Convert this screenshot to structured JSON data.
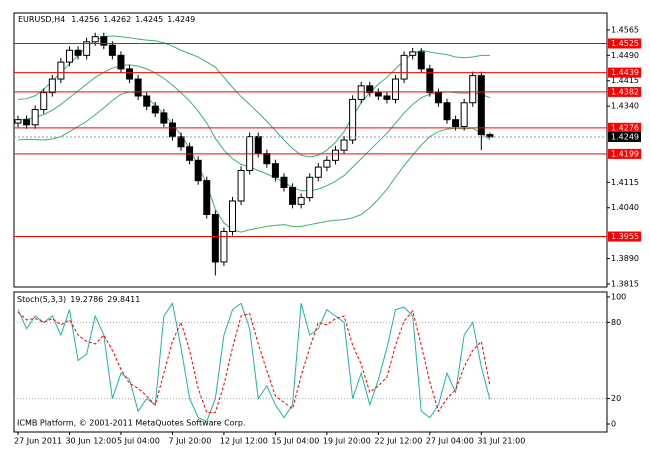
{
  "chart_data": [
    {
      "type": "candlestick",
      "symbol": "EURUSD,H4",
      "categories": [
        "27 Jun 2011",
        null,
        null,
        null,
        null,
        null,
        "30 Jun 12:00",
        null,
        null,
        null,
        null,
        null,
        "5 Jul 04:00",
        null,
        null,
        null,
        null,
        null,
        "7 Jul 20:00",
        null,
        null,
        null,
        null,
        null,
        "12 Jul 12:00",
        null,
        null,
        null,
        null,
        null,
        "15 Jul 04:00",
        null,
        null,
        null,
        null,
        null,
        "19 Jul 20:00",
        null,
        null,
        null,
        null,
        null,
        "22 Jul 12:00",
        null,
        null,
        null,
        null,
        null,
        "27 Jul 04:00",
        null,
        null,
        null,
        null,
        null,
        "31 Jul 21:00",
        null
      ],
      "open": [
        1.429,
        1.43,
        1.4285,
        1.433,
        1.438,
        1.442,
        1.447,
        1.4505,
        1.449,
        1.453,
        1.4545,
        1.452,
        1.449,
        1.445,
        1.442,
        1.437,
        1.434,
        1.432,
        1.429,
        1.425,
        1.422,
        1.418,
        1.412,
        1.402,
        1.388,
        1.397,
        1.406,
        1.415,
        1.425,
        1.42,
        1.417,
        1.413,
        1.41,
        1.405,
        1.407,
        1.413,
        1.416,
        1.418,
        1.421,
        1.424,
        1.436,
        1.44,
        1.438,
        1.437,
        1.436,
        1.442,
        1.449,
        1.45,
        1.445,
        1.438,
        1.435,
        1.43,
        1.428,
        1.435,
        1.443,
        1.4256
      ],
      "high": [
        1.4312,
        1.4312,
        1.4342,
        1.4392,
        1.4432,
        1.4482,
        1.4517,
        1.4517,
        1.4542,
        1.4557,
        1.4557,
        1.4532,
        1.4502,
        1.4462,
        1.4432,
        1.4382,
        1.4352,
        1.4332,
        1.4302,
        1.4262,
        1.4232,
        1.4192,
        1.4132,
        1.4032,
        1.3982,
        1.4072,
        1.4162,
        1.4262,
        1.4262,
        1.4212,
        1.4182,
        1.4142,
        1.4112,
        1.4082,
        1.4142,
        1.4172,
        1.4192,
        1.4222,
        1.4252,
        1.4372,
        1.4412,
        1.4412,
        1.4392,
        1.4382,
        1.4432,
        1.4502,
        1.4512,
        1.4512,
        1.4462,
        1.4392,
        1.4362,
        1.4312,
        1.4362,
        1.4442,
        1.4442,
        1.4262
      ],
      "low": [
        1.4278,
        1.4273,
        1.4273,
        1.4318,
        1.4368,
        1.4408,
        1.4458,
        1.4478,
        1.4478,
        1.4518,
        1.4508,
        1.4478,
        1.4438,
        1.4408,
        1.4358,
        1.4328,
        1.4308,
        1.4278,
        1.4238,
        1.4208,
        1.4168,
        1.4108,
        1.4008,
        1.384,
        1.3868,
        1.3958,
        1.4048,
        1.4138,
        1.4188,
        1.4158,
        1.4118,
        1.4088,
        1.4038,
        1.4038,
        1.4058,
        1.4118,
        1.4148,
        1.4168,
        1.4198,
        1.4228,
        1.4348,
        1.4368,
        1.4358,
        1.4348,
        1.4348,
        1.4408,
        1.4478,
        1.4438,
        1.4368,
        1.4338,
        1.4288,
        1.4268,
        1.4268,
        1.4338,
        1.421,
        1.4245
      ],
      "close": [
        1.43,
        1.4285,
        1.433,
        1.438,
        1.442,
        1.447,
        1.4505,
        1.449,
        1.453,
        1.4545,
        1.452,
        1.449,
        1.445,
        1.442,
        1.437,
        1.434,
        1.432,
        1.429,
        1.425,
        1.422,
        1.418,
        1.412,
        1.402,
        1.388,
        1.397,
        1.406,
        1.415,
        1.425,
        1.42,
        1.417,
        1.413,
        1.41,
        1.405,
        1.407,
        1.413,
        1.416,
        1.418,
        1.421,
        1.424,
        1.436,
        1.44,
        1.438,
        1.437,
        1.436,
        1.442,
        1.449,
        1.45,
        1.445,
        1.438,
        1.435,
        1.43,
        1.428,
        1.435,
        1.443,
        1.4256,
        1.4249
      ],
      "bollinger": {
        "color": "#3cb371",
        "upper": [
          1.436,
          1.4362,
          1.4371,
          1.439,
          1.4413,
          1.444,
          1.4465,
          1.449,
          1.4515,
          1.4535,
          1.4545,
          1.4547,
          1.4545,
          1.4542,
          1.4538,
          1.4535,
          1.4533,
          1.4527,
          1.4517,
          1.4505,
          1.4495,
          1.4485,
          1.447,
          1.4455,
          1.4425,
          1.4395,
          1.4368,
          1.4345,
          1.432,
          1.4295,
          1.4268,
          1.424,
          1.4215,
          1.4195,
          1.419,
          1.4195,
          1.421,
          1.4233,
          1.4265,
          1.431,
          1.435,
          1.438,
          1.4405,
          1.4425,
          1.445,
          1.4475,
          1.4495,
          1.4505,
          1.45,
          1.4495,
          1.4492,
          1.4485,
          1.4483,
          1.4485,
          1.449,
          1.449
        ],
        "middle": [
          1.43,
          1.4302,
          1.4306,
          1.4315,
          1.4328,
          1.4345,
          1.4365,
          1.4385,
          1.4405,
          1.4425,
          1.444,
          1.4452,
          1.446,
          1.4462,
          1.4458,
          1.445,
          1.4438,
          1.4422,
          1.4402,
          1.438,
          1.4355,
          1.4325,
          1.429,
          1.4245,
          1.421,
          1.4185,
          1.4168,
          1.416,
          1.415,
          1.414,
          1.4128,
          1.4115,
          1.41,
          1.409,
          1.409,
          1.4095,
          1.4105,
          1.4118,
          1.4135,
          1.416,
          1.4185,
          1.421,
          1.4235,
          1.426,
          1.429,
          1.432,
          1.4345,
          1.4365,
          1.4375,
          1.438,
          1.4382,
          1.438,
          1.4378,
          1.438,
          1.4375,
          1.4365
        ],
        "lower": [
          1.424,
          1.4242,
          1.4241,
          1.424,
          1.4243,
          1.425,
          1.4265,
          1.428,
          1.4295,
          1.4315,
          1.4335,
          1.4357,
          1.4375,
          1.4382,
          1.4378,
          1.4365,
          1.4343,
          1.4317,
          1.4287,
          1.4255,
          1.4215,
          1.4165,
          1.411,
          1.4035,
          1.3995,
          1.3975,
          1.3968,
          1.3975,
          1.398,
          1.3985,
          1.3988,
          1.399,
          1.3985,
          1.3985,
          1.399,
          1.3995,
          1.4,
          1.4003,
          1.4005,
          1.401,
          1.402,
          1.404,
          1.4065,
          1.4095,
          1.413,
          1.4165,
          1.4195,
          1.4225,
          1.425,
          1.4265,
          1.4272,
          1.4275,
          1.4273,
          1.4275,
          1.426,
          1.424
        ]
      },
      "levels": {
        "color": "#ff0000",
        "values": [
          1.4525,
          1.4439,
          1.4382,
          1.4276,
          1.4199,
          1.3955
        ]
      },
      "ylim": [
        1.3806,
        1.4615
      ],
      "yticks": [
        1.4565,
        {
          "value": 1.449,
          "label": "1.4490"
        },
        1.4415,
        {
          "value": 1.434,
          "label": "1.4340"
        },
        1.4115,
        {
          "value": 1.404,
          "label": "1.4040"
        },
        {
          "value": 1.389,
          "label": "1.3890"
        },
        1.3815
      ],
      "watermark": "ICMB Platform, © 2001-2011 MetaQuotes Software Corp."
    },
    {
      "type": "oscillator",
      "title": "Stoch(5,3,3)",
      "series": [
        {
          "color": "#20b2aa",
          "values": [
            90,
            75,
            85,
            80,
            85,
            70,
            90,
            50,
            55,
            85,
            70,
            20,
            40,
            35,
            10,
            20,
            15,
            85,
            95,
            60,
            20,
            5,
            2,
            20,
            70,
            90,
            95,
            75,
            20,
            30,
            15,
            5,
            15,
            95,
            70,
            75,
            90,
            85,
            80,
            20,
            40,
            15,
            35,
            60,
            90,
            92,
            85,
            10,
            5,
            15,
            40,
            25,
            70,
            80,
            45,
            19.2786
          ]
        },
        {
          "color": "#ff0000",
          "dash": true,
          "values": [
            88,
            82,
            83,
            80,
            83,
            78,
            82,
            70,
            65,
            63,
            70,
            58,
            43,
            32,
            28,
            22,
            15,
            40,
            65,
            80,
            58,
            28,
            9,
            9,
            31,
            60,
            85,
            87,
            63,
            42,
            22,
            17,
            12,
            38,
            60,
            80,
            78,
            83,
            85,
            62,
            47,
            25,
            30,
            37,
            62,
            81,
            89,
            62,
            33,
            10,
            20,
            27,
            45,
            58,
            65,
            29.8411
          ]
        }
      ],
      "ylim": [
        -6.3,
        103.9
      ],
      "yticks": [
        100,
        80,
        20,
        0
      ],
      "levels": [
        80,
        20
      ]
    }
  ]
}
